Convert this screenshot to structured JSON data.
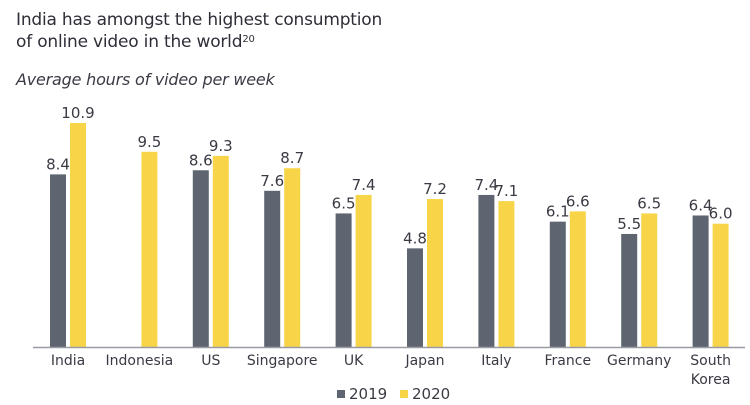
{
  "chart_data": {
    "type": "bar",
    "title": "India has amongst the highest consumption of online video in the world",
    "title_line1": "India has amongst the highest consumption",
    "title_line2": "of online video in the world",
    "title_footnote": "20",
    "subtitle": "Average hours of video per week",
    "xlabel": "",
    "ylabel": "",
    "ylim": [
      0,
      11
    ],
    "grid": false,
    "categories": [
      "India",
      "Indonesia",
      "US",
      "Singapore",
      "UK",
      "Japan",
      "Italy",
      "France",
      "Germany",
      "South Korea"
    ],
    "category_lines": [
      [
        "India"
      ],
      [
        "Indonesia"
      ],
      [
        "US"
      ],
      [
        "Singapore"
      ],
      [
        "UK"
      ],
      [
        "Japan"
      ],
      [
        "Italy"
      ],
      [
        "France"
      ],
      [
        "Germany"
      ],
      [
        "South",
        "Korea"
      ]
    ],
    "series": [
      {
        "name": "2019",
        "color": "#5f6570",
        "values": [
          8.4,
          null,
          8.6,
          7.6,
          6.5,
          4.8,
          7.4,
          6.1,
          5.5,
          6.4
        ],
        "labels": [
          "8.4",
          "",
          "8.6",
          "7.6",
          "6.5",
          "4.8",
          "7.4",
          "6.1",
          "5.5",
          "6.4"
        ]
      },
      {
        "name": "2020",
        "color": "#f8d548",
        "values": [
          10.9,
          9.5,
          9.3,
          8.7,
          7.4,
          7.2,
          7.1,
          6.6,
          6.5,
          6.0
        ],
        "labels": [
          "10.9",
          "9.5",
          "9.3",
          "8.7",
          "7.4",
          "7.2",
          "7.1",
          "6.6",
          "6.5",
          "6.0"
        ]
      }
    ],
    "legend": {
      "position": "bottom-center",
      "entries": [
        "2019",
        "2020"
      ]
    },
    "axis_color": "#9a9ba2",
    "label_color": "#3a3a44"
  }
}
